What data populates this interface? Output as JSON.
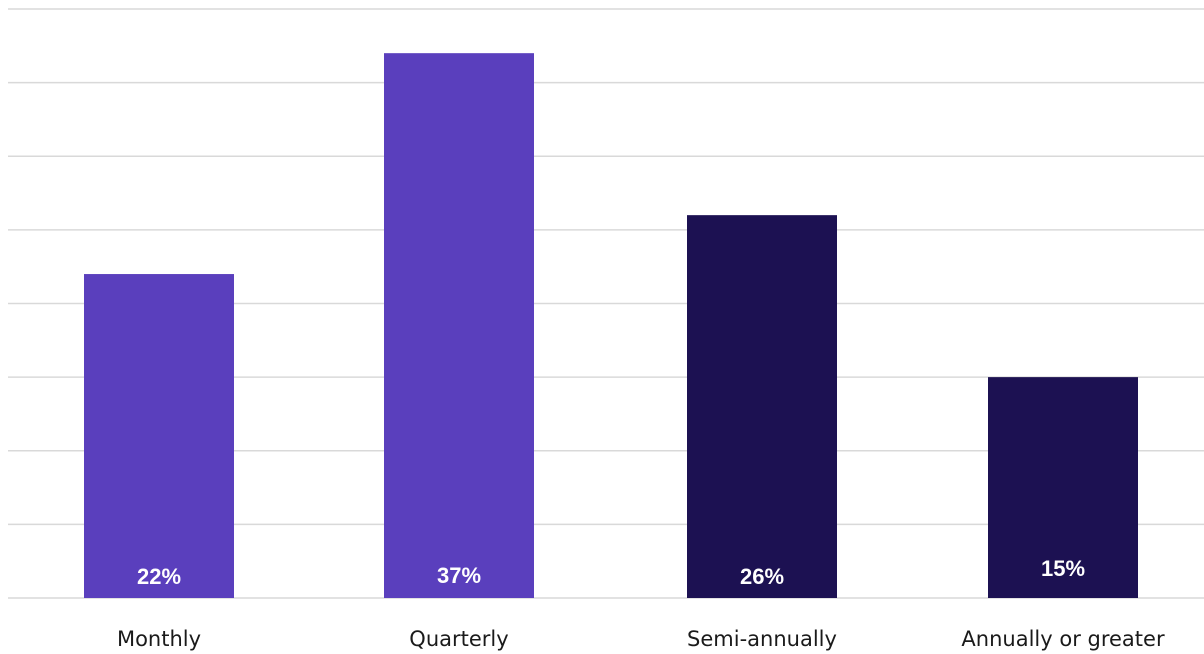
{
  "colors": {
    "light_bar": "#5a3fbd",
    "dark_bar": "#1c1152",
    "gridline": "#d9d9d9",
    "label_text": "#ffffff",
    "axis_text": "#1a1a1a"
  },
  "chart_data": {
    "type": "bar",
    "title": "",
    "xlabel": "",
    "ylabel": "",
    "categories": [
      "Monthly",
      "Quarterly",
      "Semi-annually",
      "Annually or greater"
    ],
    "values": [
      22,
      37,
      26,
      15
    ],
    "value_labels": [
      "22%",
      "37%",
      "26%",
      "15%"
    ],
    "bar_colors": [
      "#5a3fbd",
      "#5a3fbd",
      "#1c1152",
      "#1c1152"
    ],
    "ylim": [
      0,
      40
    ],
    "grid": true,
    "legend": "none"
  }
}
